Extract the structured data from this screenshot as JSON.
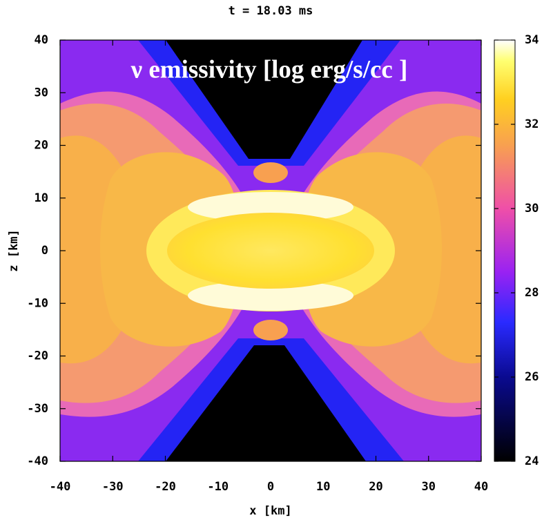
{
  "chart_data": {
    "type": "heatmap",
    "title": "t = 18.03 ms",
    "annotation": "ν emissivity [log  erg/s/cc ]",
    "x_label": "x [km]",
    "y_label": "z [km]",
    "xlim": [
      -40,
      40
    ],
    "ylim": [
      -40,
      40
    ],
    "xticks": [
      -40,
      -30,
      -20,
      -10,
      0,
      10,
      20,
      30,
      40
    ],
    "yticks": [
      -40,
      -30,
      -20,
      -10,
      0,
      10,
      20,
      30,
      40
    ],
    "colorbar": {
      "lim": [
        24,
        34
      ],
      "ticks": [
        24,
        26,
        28,
        30,
        32,
        34
      ]
    }
  }
}
